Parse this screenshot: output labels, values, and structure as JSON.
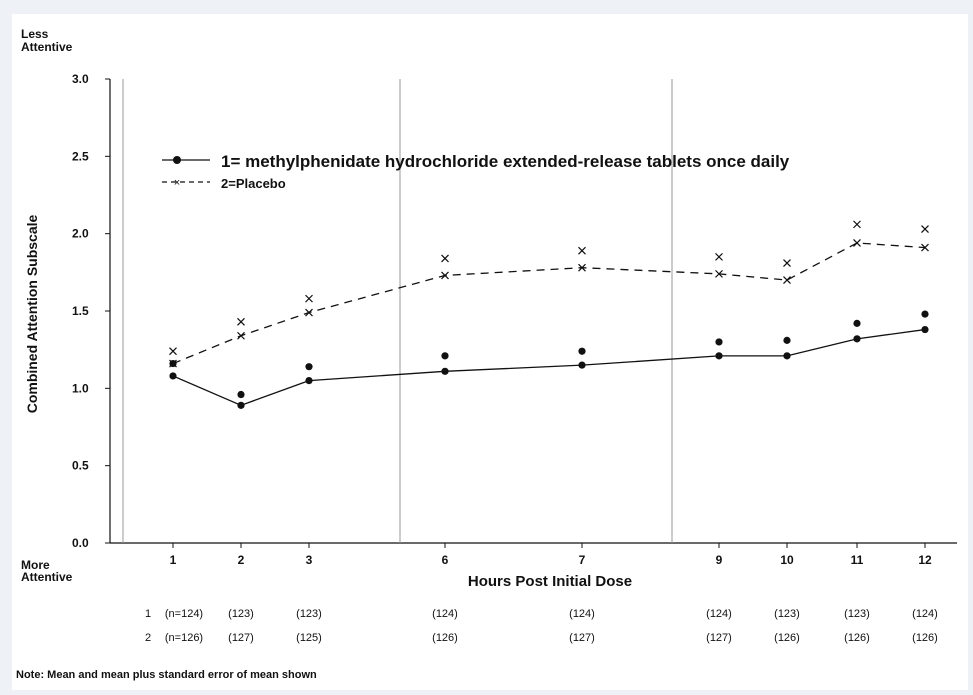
{
  "chart_data": {
    "type": "line",
    "ylabel": "Combined Attention Subscale",
    "xlabel": "Hours Post Initial Dose",
    "y_top_label": [
      "Less",
      "Attentive"
    ],
    "y_bottom_label": [
      "More",
      "Attentive"
    ],
    "ylim": [
      0.0,
      3.0
    ],
    "y_ticks": [
      "0.0",
      "0.5",
      "1.0",
      "1.5",
      "2.0",
      "2.5",
      "3.0"
    ],
    "x": [
      1,
      2,
      3,
      6,
      7,
      9,
      10,
      11,
      12
    ],
    "x_tick_labels": [
      "1",
      "2",
      "3",
      "6",
      "7",
      "9",
      "10",
      "11",
      "12"
    ],
    "legend_position": "top-left",
    "series": [
      {
        "name": "1= methylphenidate hydrochloride extended-release tablets once daily",
        "marker": "dot",
        "line_style": "solid",
        "color": "#111111",
        "mean": [
          1.08,
          0.89,
          1.05,
          1.11,
          1.15,
          1.21,
          1.21,
          1.32,
          1.38
        ],
        "mean_plus_se": [
          1.16,
          0.96,
          1.14,
          1.21,
          1.24,
          1.3,
          1.31,
          1.42,
          1.48
        ],
        "n": [
          "(n=124)",
          "(123)",
          "(123)",
          "(124)",
          "(124)",
          "(124)",
          "(123)",
          "(123)",
          "(124)"
        ],
        "n_row_label": "1"
      },
      {
        "name": "2=Placebo",
        "marker": "x",
        "line_style": "dashed",
        "color": "#111111",
        "mean": [
          1.16,
          1.34,
          1.49,
          1.73,
          1.78,
          1.74,
          1.7,
          1.94,
          1.91
        ],
        "mean_plus_se": [
          1.24,
          1.43,
          1.58,
          1.84,
          1.89,
          1.85,
          1.81,
          2.06,
          2.03
        ],
        "n": [
          "(n=126)",
          "(127)",
          "(125)",
          "(126)",
          "(127)",
          "(127)",
          "(126)",
          "(126)",
          "(126)"
        ],
        "n_row_label": "2"
      }
    ],
    "vertical_dividers_after_x": [
      3,
      7
    ],
    "note": "Note:  Mean and mean plus standard error of mean shown"
  }
}
